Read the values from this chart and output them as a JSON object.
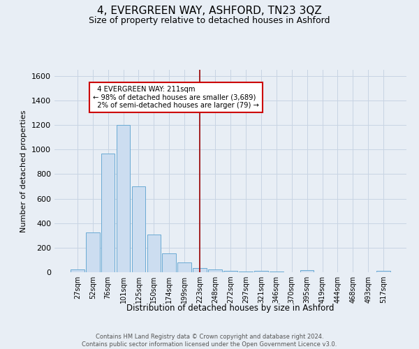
{
  "title": "4, EVERGREEN WAY, ASHFORD, TN23 3QZ",
  "subtitle": "Size of property relative to detached houses in Ashford",
  "xlabel": "Distribution of detached houses by size in Ashford",
  "ylabel": "Number of detached properties",
  "footnote1": "Contains HM Land Registry data © Crown copyright and database right 2024.",
  "footnote2": "Contains public sector information licensed under the Open Government Licence v3.0.",
  "bar_labels": [
    "27sqm",
    "52sqm",
    "76sqm",
    "101sqm",
    "125sqm",
    "150sqm",
    "174sqm",
    "199sqm",
    "223sqm",
    "248sqm",
    "272sqm",
    "297sqm",
    "321sqm",
    "346sqm",
    "370sqm",
    "395sqm",
    "419sqm",
    "444sqm",
    "468sqm",
    "493sqm",
    "517sqm"
  ],
  "bar_values": [
    25,
    325,
    970,
    1200,
    700,
    305,
    155,
    80,
    35,
    20,
    10,
    5,
    10,
    5,
    0,
    15,
    0,
    0,
    0,
    0,
    10
  ],
  "bar_color": "#ccddf0",
  "bar_edge_color": "#6aaad4",
  "grid_color": "#c8d4e3",
  "background_color": "#e8eef5",
  "vline_x_index": 8.0,
  "vline_color": "#990000",
  "annotation_text": "  4 EVERGREEN WAY: 211sqm\n← 98% of detached houses are smaller (3,689)\n  2% of semi-detached houses are larger (79) →",
  "annotation_box_color": "white",
  "annotation_box_edge": "#cc0000",
  "ylim": [
    0,
    1650
  ],
  "yticks": [
    0,
    200,
    400,
    600,
    800,
    1000,
    1200,
    1400,
    1600
  ]
}
